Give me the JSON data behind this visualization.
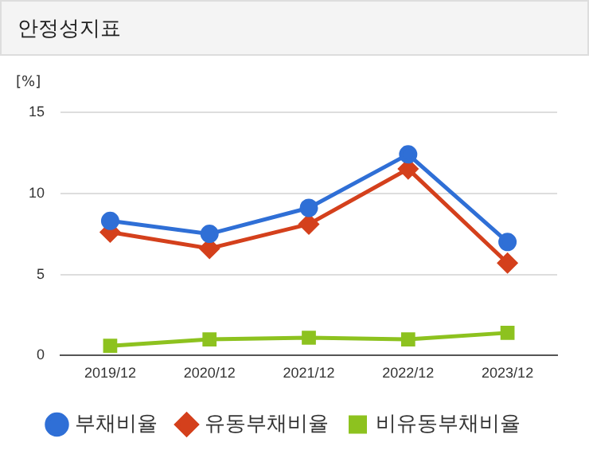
{
  "chart_data": {
    "type": "line",
    "title": "안정성지표",
    "ylabel": "[%]",
    "categories": [
      "2019/12",
      "2020/12",
      "2021/12",
      "2022/12",
      "2023/12"
    ],
    "series": [
      {
        "name": "부채비율",
        "color": "#2f6fd6",
        "marker": "circle",
        "values": [
          8.3,
          7.5,
          9.1,
          12.4,
          7.0
        ]
      },
      {
        "name": "유동부채비율",
        "color": "#d4401c",
        "marker": "diamond",
        "values": [
          7.6,
          6.6,
          8.1,
          11.5,
          5.7
        ]
      },
      {
        "name": "비유동부채비율",
        "color": "#8dc21f",
        "marker": "square",
        "values": [
          0.6,
          1.0,
          1.1,
          1.0,
          1.4
        ]
      }
    ],
    "ylim": [
      0,
      15
    ],
    "yticks": [
      0,
      5,
      10,
      15
    ],
    "grid": "y",
    "legend": "bottom"
  }
}
